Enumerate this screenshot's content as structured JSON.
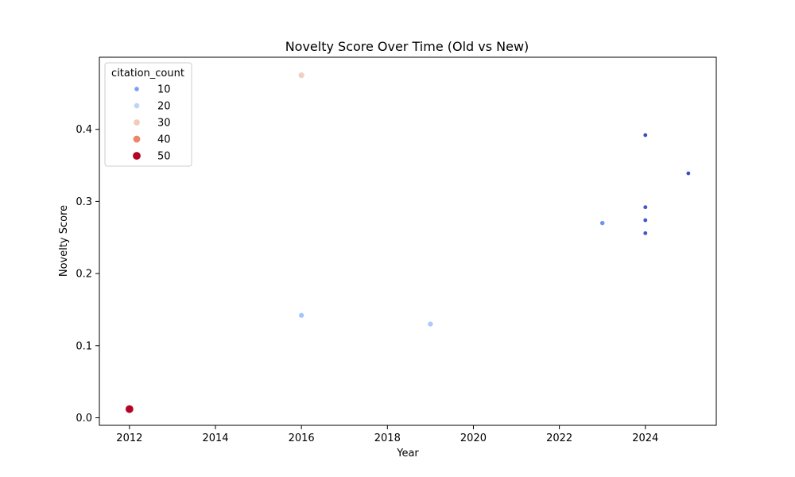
{
  "chart_data": {
    "type": "scatter",
    "title": "Novelty Score Over Time (Old vs New)",
    "xlabel": "Year",
    "ylabel": "Novelty Score",
    "xlim": [
      2011.3,
      2025.65
    ],
    "ylim": [
      -0.0105,
      0.5
    ],
    "xticks": [
      2012,
      2014,
      2016,
      2018,
      2020,
      2022,
      2024
    ],
    "yticks": [
      0.0,
      0.1,
      0.2,
      0.3,
      0.4
    ],
    "grid": false,
    "color_map": "coolwarm",
    "legend": {
      "title": "citation_count",
      "position": "top-left",
      "entries": [
        {
          "label": "10",
          "value": 10,
          "color": "#7b9ff9"
        },
        {
          "label": "20",
          "value": 20,
          "color": "#c0d4f5"
        },
        {
          "label": "30",
          "value": 30,
          "color": "#f2cbb7"
        },
        {
          "label": "40",
          "value": 40,
          "color": "#ee8468"
        },
        {
          "label": "50",
          "value": 50,
          "color": "#b40426"
        }
      ]
    },
    "points": [
      {
        "x": 2012,
        "y": 0.012,
        "citation_count": 50,
        "color": "#b40426"
      },
      {
        "x": 2016,
        "y": 0.475,
        "citation_count": 26,
        "color": "#edd2c3"
      },
      {
        "x": 2016,
        "y": 0.142,
        "citation_count": 16,
        "color": "#a5c3fe"
      },
      {
        "x": 2019,
        "y": 0.13,
        "citation_count": 17,
        "color": "#aec9fc"
      },
      {
        "x": 2023,
        "y": 0.27,
        "citation_count": 9,
        "color": "#6f92f3"
      },
      {
        "x": 2024,
        "y": 0.392,
        "citation_count": 2,
        "color": "#3b4cc0"
      },
      {
        "x": 2024,
        "y": 0.292,
        "citation_count": 3,
        "color": "#4257c9"
      },
      {
        "x": 2024,
        "y": 0.274,
        "citation_count": 3,
        "color": "#4257c9"
      },
      {
        "x": 2024,
        "y": 0.256,
        "citation_count": 3,
        "color": "#4257c9"
      },
      {
        "x": 2025,
        "y": 0.339,
        "citation_count": 2,
        "color": "#3b4cc0"
      }
    ]
  }
}
